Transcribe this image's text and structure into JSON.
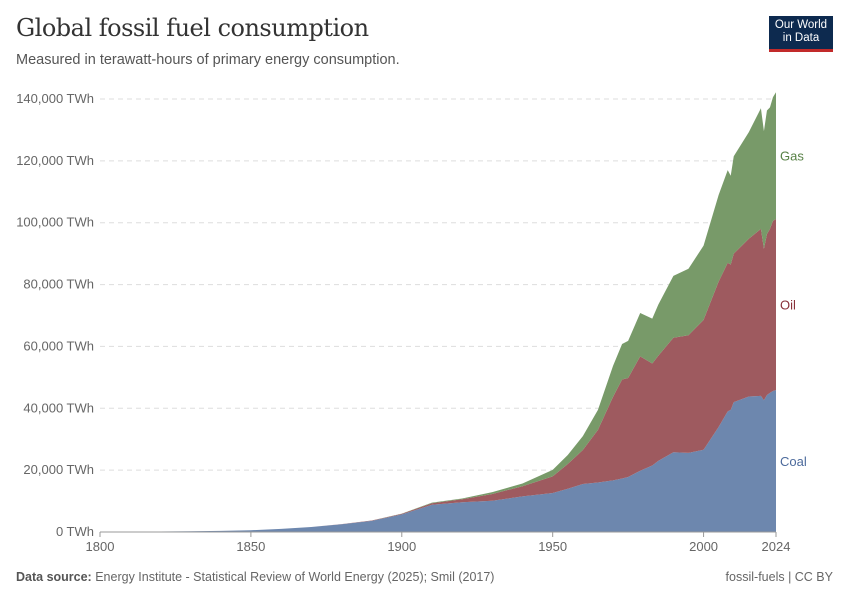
{
  "header": {
    "title": "Global fossil fuel consumption",
    "subtitle": "Measured in terawatt-hours of primary energy consumption.",
    "logo": "Our World in Data"
  },
  "footer": {
    "source_label": "Data source:",
    "source": "Energy Institute - Statistical Review of World Energy (2025); Smil (2017)",
    "license": "fossil-fuels | CC BY"
  },
  "chart_data": {
    "type": "area",
    "stacked": true,
    "title": "Global fossil fuel consumption",
    "ylabel": "",
    "xlabel": "",
    "xlim": [
      1800,
      2024
    ],
    "ylim": [
      0,
      140000
    ],
    "grid": "horizontal dashed",
    "legend": "inline-right",
    "y_ticks": [
      "0 TWh",
      "20,000 TWh",
      "40,000 TWh",
      "60,000 TWh",
      "80,000 TWh",
      "100,000 TWh",
      "120,000 TWh",
      "140,000 TWh"
    ],
    "x_ticks": [
      "1800",
      "1850",
      "1900",
      "1950",
      "2000",
      "2024"
    ],
    "x": [
      1800,
      1810,
      1820,
      1830,
      1840,
      1850,
      1860,
      1870,
      1880,
      1890,
      1900,
      1910,
      1920,
      1930,
      1940,
      1950,
      1955,
      1960,
      1965,
      1970,
      1973,
      1975,
      1979,
      1983,
      1985,
      1990,
      1995,
      2000,
      2005,
      2008,
      2009,
      2010,
      2015,
      2019,
      2020,
      2021,
      2022,
      2023,
      2024
    ],
    "series": [
      {
        "name": "Coal",
        "color": "#6d87ae",
        "label_color": "#4c6a9c",
        "values": [
          97,
          130,
          180,
          260,
          380,
          570,
          1000,
          1600,
          2500,
          3600,
          5700,
          8800,
          9600,
          10100,
          11500,
          12600,
          14000,
          15500,
          16000,
          16700,
          17300,
          17800,
          19800,
          21500,
          23000,
          25800,
          25600,
          26600,
          34000,
          39000,
          39500,
          42000,
          43800,
          44000,
          42600,
          44300,
          45000,
          45600,
          45900
        ]
      },
      {
        "name": "Oil",
        "color": "#9e5a5f",
        "label_color": "#883039",
        "values": [
          0,
          0,
          0,
          0,
          0,
          0,
          0,
          10,
          50,
          100,
          200,
          500,
          1000,
          2200,
          3300,
          5400,
          8000,
          11000,
          17000,
          27000,
          32000,
          32000,
          37000,
          33000,
          34000,
          37000,
          38000,
          42000,
          47000,
          48000,
          47000,
          48000,
          51000,
          54000,
          49000,
          52000,
          53000,
          55000,
          55300
        ]
      },
      {
        "name": "Gas",
        "color": "#789a69",
        "label_color": "#578145",
        "values": [
          0,
          0,
          0,
          0,
          0,
          0,
          0,
          0,
          0,
          0,
          60,
          200,
          250,
          600,
          900,
          2100,
          2900,
          4500,
          6500,
          10000,
          11500,
          12000,
          14000,
          14500,
          16500,
          20000,
          21500,
          24000,
          28000,
          30000,
          28700,
          31500,
          34500,
          39000,
          38000,
          40000,
          39300,
          40000,
          41000
        ]
      }
    ]
  }
}
